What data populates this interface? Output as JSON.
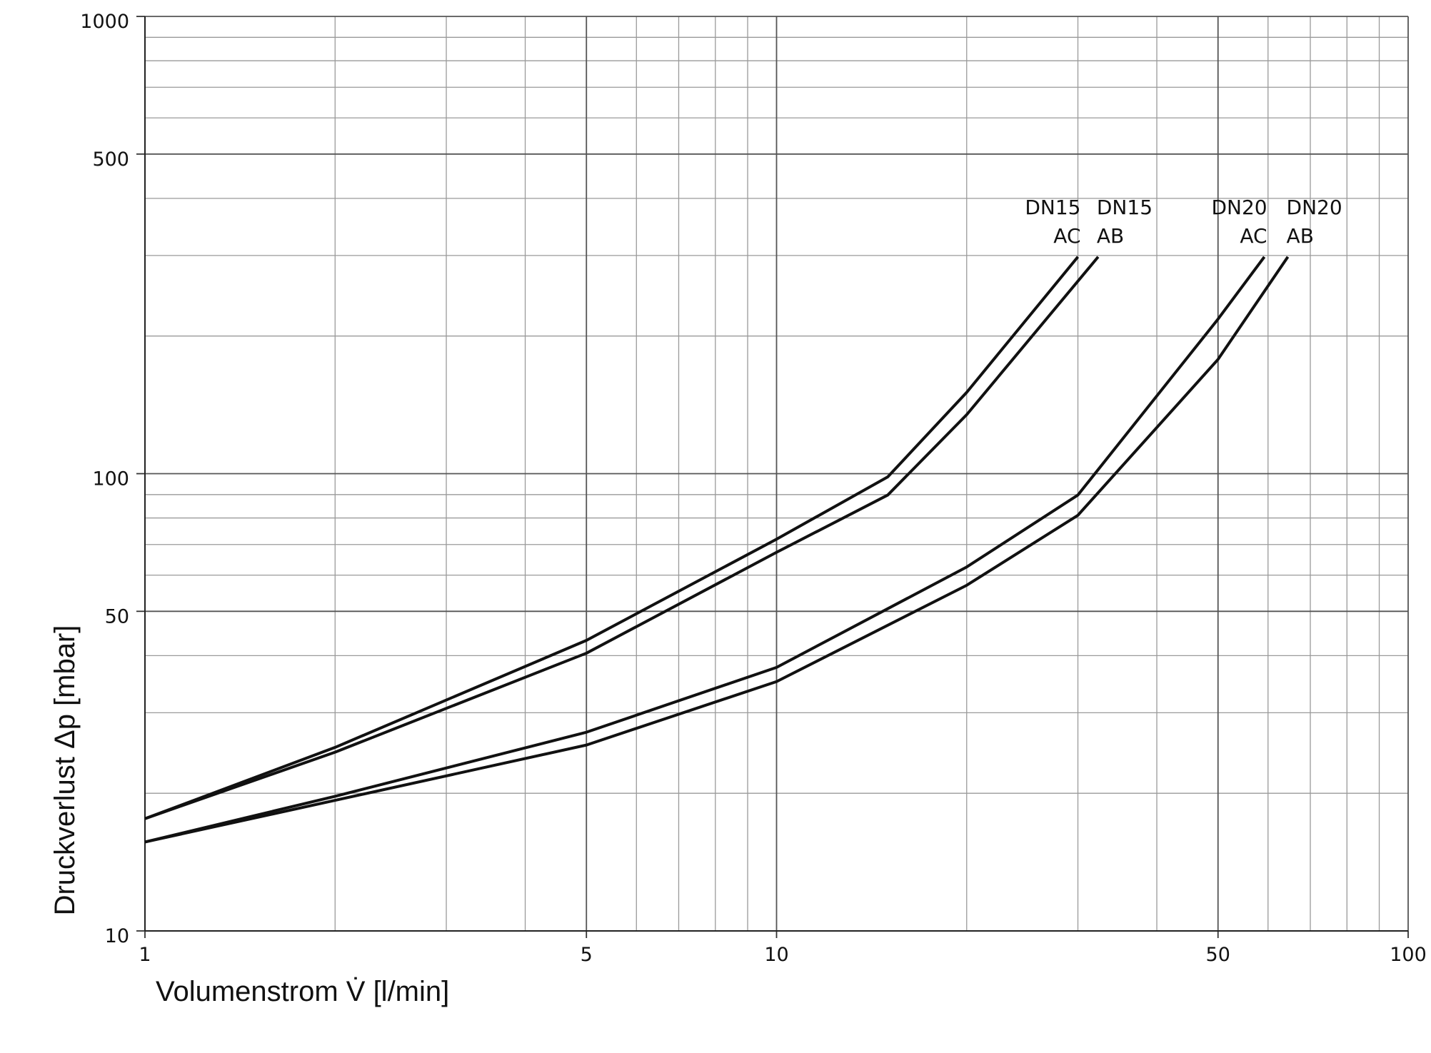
{
  "chart_data": {
    "type": "line",
    "xlabel": "Volumenstrom V̇ [l/min]",
    "ylabel": "Druckverlust Δp [mbar]",
    "xscale": "log",
    "yscale": "log",
    "xlim": [
      1,
      100
    ],
    "ylim": [
      10,
      1000
    ],
    "xticks": [
      1,
      5,
      10,
      50,
      100
    ],
    "yticks": [
      10,
      50,
      100,
      500,
      1000
    ],
    "xminor": [
      2,
      3,
      4,
      6,
      7,
      8,
      9,
      20,
      30,
      40,
      60,
      70,
      80,
      90
    ],
    "yminor": [
      20,
      30,
      40,
      60,
      70,
      80,
      90,
      200,
      300,
      400,
      600,
      700,
      800,
      900
    ],
    "grid": true,
    "series": [
      {
        "label_lines": [
          "DN15",
          "AC"
        ],
        "color": "#111111",
        "x": [
          1,
          2,
          5,
          10,
          15,
          20,
          30
        ],
        "values": [
          17.6,
          25.2,
          43.2,
          71.9,
          98.4,
          150.6,
          298
        ]
      },
      {
        "label_lines": [
          "DN15",
          "AB"
        ],
        "color": "#111111",
        "x": [
          1,
          2,
          5,
          10,
          15,
          20,
          32.3
        ],
        "values": [
          17.6,
          24.6,
          40.5,
          67.3,
          89.8,
          134.6,
          298
        ]
      },
      {
        "label_lines": [
          "DN20",
          "AC"
        ],
        "color": "#111111",
        "x": [
          1,
          2,
          5,
          10,
          20,
          30,
          50,
          59.2
        ],
        "values": [
          15.65,
          19.7,
          27.2,
          37.7,
          62.5,
          89.8,
          217.8,
          298
        ]
      },
      {
        "label_lines": [
          "DN20",
          "AB"
        ],
        "color": "#111111",
        "x": [
          1,
          2,
          5,
          10,
          20,
          30,
          50,
          64.5
        ],
        "values": [
          15.65,
          19.3,
          25.5,
          35.1,
          57.0,
          81.1,
          177.8,
          298
        ]
      }
    ]
  }
}
